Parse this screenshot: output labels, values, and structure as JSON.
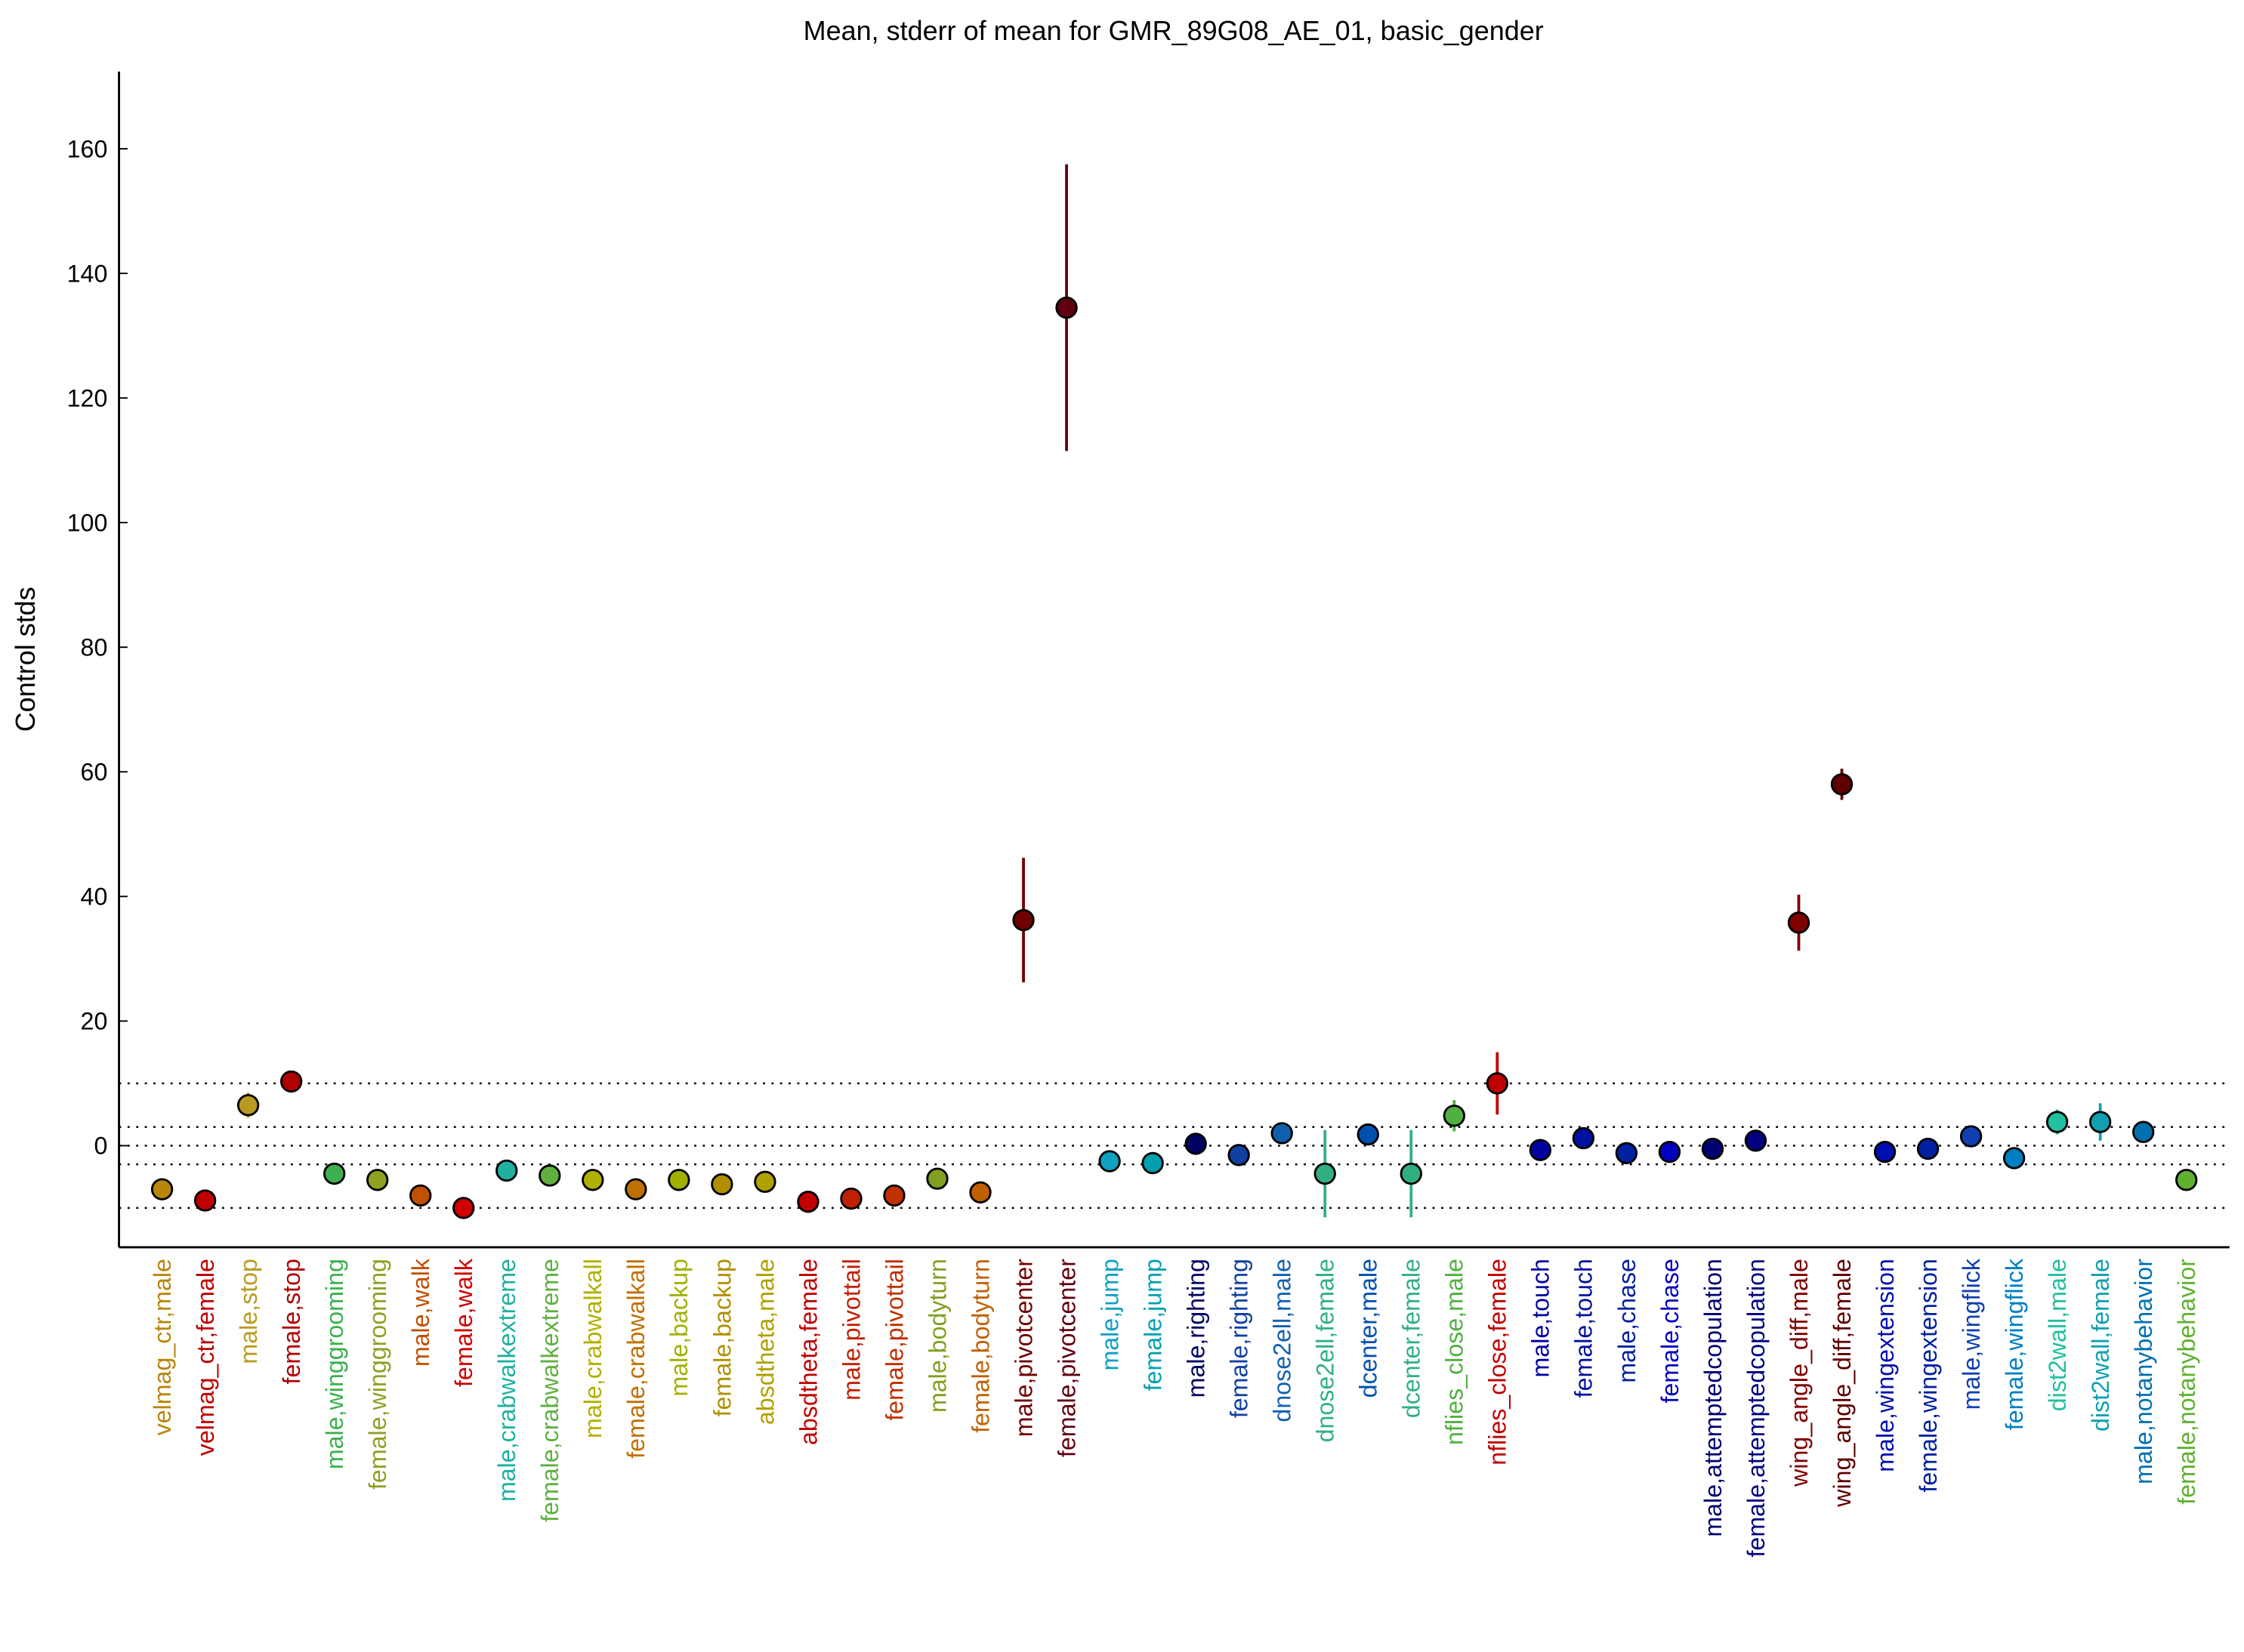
{
  "chart_data": {
    "type": "errorbar",
    "title": "Mean, stderr of mean for GMR_89G08_AE_01, basic_gender",
    "y_label": "Control stds",
    "ylim": [
      -16.3,
      172.4
    ],
    "yticks": [
      0,
      20,
      40,
      60,
      80,
      100,
      120,
      140,
      160
    ],
    "reference_lines": [
      -10,
      -3,
      0,
      3,
      10
    ],
    "categories": [
      "velmag_ctr,male",
      "velmag_ctr,female",
      "male,stop",
      "female,stop",
      "male,winggrooming",
      "female,winggrooming",
      "male,walk",
      "female,walk",
      "male,crabwalkextreme",
      "female,crabwalkextreme",
      "male,crabwalkall",
      "female,crabwalkall",
      "male,backup",
      "female,backup",
      "absdtheta,male",
      "absdtheta,female",
      "male,pivottail",
      "female,pivottail",
      "male,bodyturn",
      "female,bodyturn",
      "male,pivotcenter",
      "female,pivotcenter",
      "male,jump",
      "female,jump",
      "male,righting",
      "female,righting",
      "dnose2ell,male",
      "dnose2ell,female",
      "dcenter,male",
      "dcenter,female",
      "nflies_close,male",
      "nflies_close,female",
      "male,touch",
      "female,touch",
      "male,chase",
      "female,chase",
      "male,attemptedcopulation",
      "female,attemptedcopulation",
      "wing_angle_diff,male",
      "wing_angle_diff,female",
      "male,wingextension",
      "female,wingextension",
      "male,wingflick",
      "female,wingflick",
      "dist2wall,male",
      "dist2wall,female",
      "male,notanybehavior",
      "female,notanybehavior"
    ],
    "values": [
      -7,
      -8.8,
      6.5,
      10.3,
      -4.5,
      -5.5,
      -8,
      -10,
      -4,
      -4.8,
      -5.5,
      -7,
      -5.5,
      -6.2,
      -5.8,
      -9,
      -8.5,
      -8,
      -5.3,
      -7.5,
      36.2,
      134.5,
      -2.5,
      -2.8,
      0.3,
      -1.5,
      2,
      -4.5,
      1.8,
      -4.5,
      4.8,
      10,
      -0.7,
      1.2,
      -1.2,
      -1,
      -0.5,
      0.8,
      35.8,
      58,
      -1,
      -0.5,
      1.5,
      -2,
      3.8,
      3.8,
      2.2,
      -5.5
    ],
    "errors": [
      0.8,
      0.6,
      2,
      0.8,
      0.6,
      0.6,
      0.8,
      0.6,
      0.6,
      0.6,
      0.6,
      0.6,
      0.6,
      0.6,
      0.6,
      0.6,
      0.6,
      0.6,
      0.6,
      0.6,
      10,
      23,
      0.6,
      0.6,
      0.6,
      0.6,
      1.2,
      7,
      1.2,
      7,
      2.5,
      5,
      0.6,
      1,
      0.6,
      0.6,
      0.6,
      0.8,
      4.5,
      2.5,
      0.6,
      0.6,
      1,
      0.6,
      2,
      3,
      1,
      0.6
    ],
    "colors": [
      "#b8860b",
      "#c00000",
      "#b89a20",
      "#b00000",
      "#3cb050",
      "#90a020",
      "#c05000",
      "#d00000",
      "#20b0a0",
      "#60b040",
      "#b0b000",
      "#c07000",
      "#a0b000",
      "#b09000",
      "#b0a000",
      "#c00000",
      "#c02000",
      "#c03000",
      "#80a020",
      "#c06000",
      "#700000",
      "#600010",
      "#10a0c0",
      "#00a0b0",
      "#000060",
      "#1040a0",
      "#1060b0",
      "#30b080",
      "#0050b0",
      "#30b080",
      "#50b040",
      "#c00000",
      "#0000a0",
      "#0010a0",
      "#0020a0",
      "#0000c0",
      "#000070",
      "#000080",
      "#800000",
      "#600000",
      "#0010b0",
      "#0020a0",
      "#1040b0",
      "#0080c0",
      "#20c0a0",
      "#10a0b0",
      "#0070b0",
      "#60b030"
    ]
  }
}
